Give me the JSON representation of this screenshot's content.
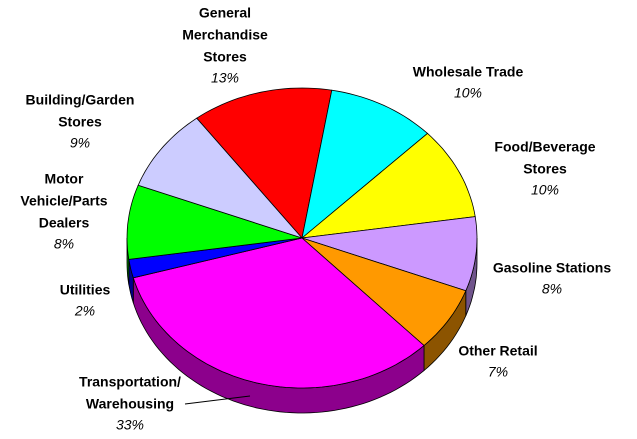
{
  "chart_data": {
    "type": "pie",
    "labels": [
      [
        "General",
        "Merchandise",
        "Stores"
      ],
      [
        "Wholesale Trade"
      ],
      [
        "Food/Beverage",
        "Stores"
      ],
      [
        "Gasoline Stations"
      ],
      [
        "Other Retail"
      ],
      [
        "Transportation/",
        "Warehousing"
      ],
      [
        "Utilities"
      ],
      [
        "Motor",
        "Vehicle/Parts",
        "Dealers"
      ],
      [
        "Building/Garden",
        "Stores"
      ]
    ],
    "values": [
      13,
      10,
      10,
      8,
      7,
      33,
      2,
      8,
      9
    ],
    "value_labels": [
      "13%",
      "10%",
      "10%",
      "8%",
      "7%",
      "33%",
      "2%",
      "8%",
      "9%"
    ],
    "colors": [
      "#ff0000",
      "#00ffff",
      "#ffff00",
      "#cc99ff",
      "#ff9900",
      "#ff00ff",
      "#0000ff",
      "#00ff00",
      "#ccccff"
    ]
  }
}
